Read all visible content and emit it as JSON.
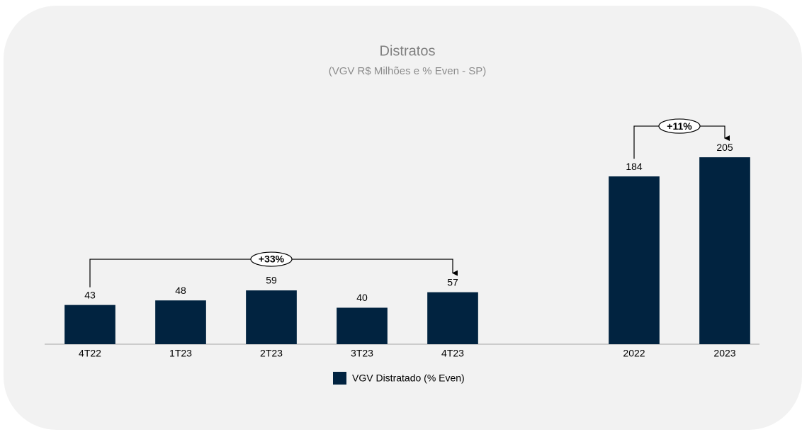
{
  "chart_data": {
    "type": "bar",
    "title": "Distratos",
    "subtitle": "(VGV R$ Milhões e % Even - SP)",
    "categories": [
      "4T22",
      "1T23",
      "2T23",
      "3T23",
      "4T23",
      null,
      "2022",
      "2023"
    ],
    "series": [
      {
        "name": "VGV Distratado (% Even)",
        "color": "#012340",
        "values": [
          43,
          48,
          59,
          40,
          57,
          null,
          184,
          205
        ]
      }
    ],
    "ylim": [
      0,
      240
    ],
    "annotations": [
      {
        "text": "+33%",
        "from": "4T22",
        "to": "4T23"
      },
      {
        "text": "+11%",
        "from": "2022",
        "to": "2023"
      }
    ],
    "legend": "bottom"
  }
}
